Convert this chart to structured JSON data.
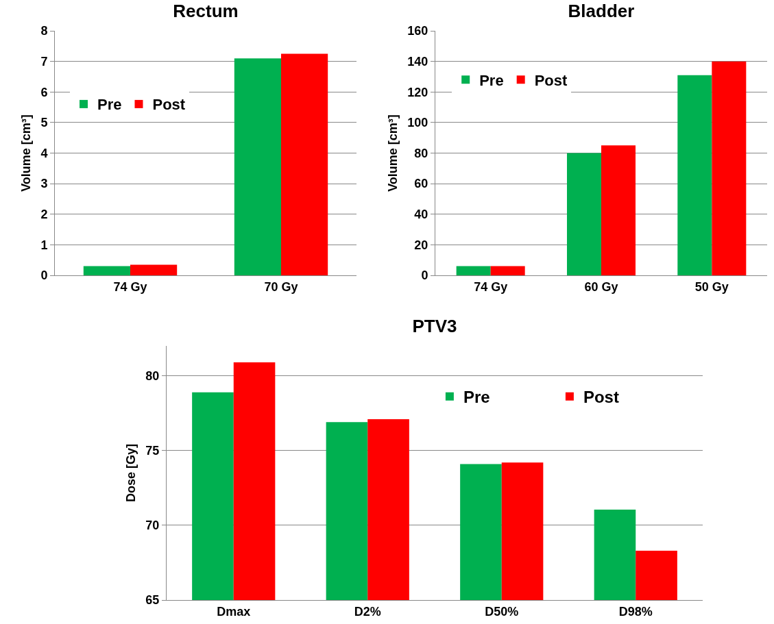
{
  "chart_data": [
    {
      "type": "bar",
      "title": "Rectum",
      "ylabel": "Volume [cm³]",
      "categories": [
        "74 Gy",
        "70 Gy"
      ],
      "series": [
        {
          "name": "Pre",
          "color": "#00b050",
          "values": [
            0.3,
            7.1
          ]
        },
        {
          "name": "Post",
          "color": "#ff0000",
          "values": [
            0.35,
            7.25
          ]
        }
      ],
      "ylim": [
        0,
        8
      ],
      "yticks": [
        0,
        1,
        2,
        3,
        4,
        5,
        6,
        7,
        8
      ],
      "grid": "y",
      "legend": "left"
    },
    {
      "type": "bar",
      "title": "Bladder",
      "ylabel": "Volume [cm³]",
      "categories": [
        "74 Gy",
        "60 Gy",
        "50 Gy"
      ],
      "series": [
        {
          "name": "Pre",
          "color": "#00b050",
          "values": [
            6,
            80,
            131
          ]
        },
        {
          "name": "Post",
          "color": "#ff0000",
          "values": [
            6,
            85,
            140
          ]
        }
      ],
      "ylim": [
        0,
        160
      ],
      "yticks": [
        0,
        20,
        40,
        60,
        80,
        100,
        120,
        140,
        160
      ],
      "grid": "y",
      "legend": "top left"
    },
    {
      "type": "bar",
      "title": "PTV3",
      "ylabel": "Dose [Gy]",
      "categories": [
        "Dmax",
        "D2%",
        "D50%",
        "D98%"
      ],
      "series": [
        {
          "name": "Pre",
          "color": "#00b050",
          "values": [
            78.9,
            76.9,
            74.1,
            71.05
          ]
        },
        {
          "name": "Post",
          "color": "#ff0000",
          "values": [
            80.9,
            77.1,
            74.2,
            68.3
          ]
        }
      ],
      "ylim": [
        65,
        82
      ],
      "yticks": [
        65,
        70,
        75,
        80
      ],
      "grid": "y",
      "legend": "top right"
    }
  ]
}
